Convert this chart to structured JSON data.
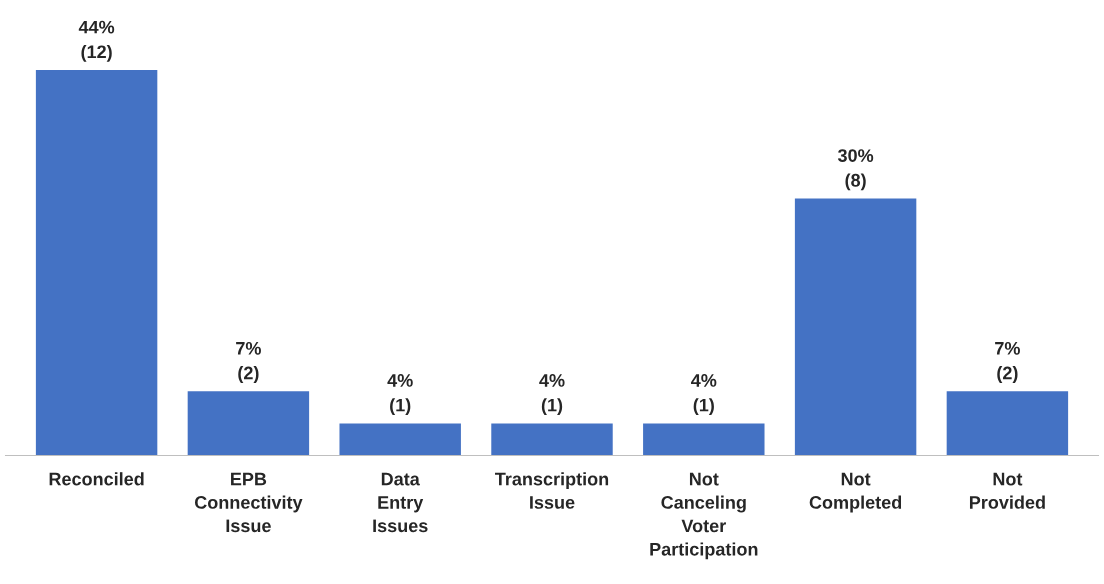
{
  "chart_data": {
    "type": "bar",
    "categories": [
      "Reconciled",
      "EPB\nConnectivity\nIssue",
      "Data\nEntry\nIssues",
      "Transcription\nIssue",
      "Not\nCanceling\nVoter\nParticipation",
      "Not\nCompleted",
      "Not\nProvided"
    ],
    "values": [
      12,
      2,
      1,
      1,
      1,
      8,
      2
    ],
    "value_labels": [
      "44%\n(12)",
      "7%\n(2)",
      "4%\n(1)",
      "4%\n(1)",
      "4%\n(1)",
      "30%\n(8)",
      "7%\n(2)"
    ],
    "color": "#4472c4"
  }
}
